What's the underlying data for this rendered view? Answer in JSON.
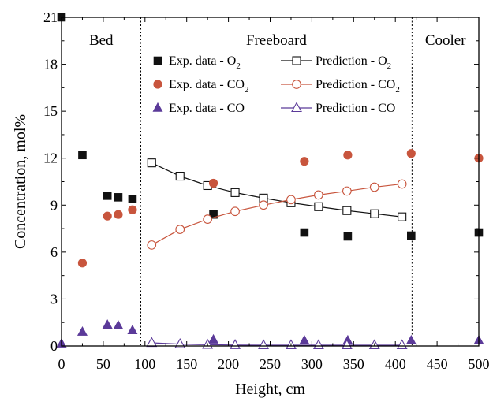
{
  "chart_data": {
    "type": "scatter",
    "xlabel": "Height, cm",
    "ylabel": "Concentration, mol%",
    "xlim": [
      0,
      500
    ],
    "ylim": [
      0,
      21
    ],
    "xticks": [
      0,
      50,
      100,
      150,
      200,
      250,
      300,
      350,
      400,
      450,
      500
    ],
    "yticks": [
      0,
      3,
      6,
      9,
      12,
      15,
      18,
      21
    ],
    "grid": false,
    "legend_position": "top-center",
    "regions": [
      {
        "label": "Bed",
        "x_start": 0,
        "x_end": 95
      },
      {
        "label": "Freeboard",
        "x_start": 95,
        "x_end": 420
      },
      {
        "label": "Cooler",
        "x_start": 420,
        "x_end": 500
      }
    ],
    "region_boundaries": [
      95,
      420
    ],
    "series": [
      {
        "name": "Exp. data - O2",
        "kind": "scatter",
        "marker": "square",
        "filled": true,
        "color": "#111111",
        "x": [
          0,
          25,
          55,
          68,
          85,
          182,
          291,
          343,
          419,
          500
        ],
        "y": [
          21.0,
          12.2,
          9.6,
          9.5,
          9.4,
          8.4,
          7.25,
          7.0,
          7.05,
          7.25
        ]
      },
      {
        "name": "Prediction - O2",
        "kind": "line",
        "marker": "square",
        "filled": false,
        "color": "#111111",
        "x": [
          108,
          142,
          175,
          208,
          242,
          275,
          308,
          342,
          375,
          408
        ],
        "y": [
          11.7,
          10.85,
          10.25,
          9.8,
          9.45,
          9.15,
          8.9,
          8.65,
          8.45,
          8.25
        ]
      },
      {
        "name": "Exp. data - CO2",
        "kind": "scatter",
        "marker": "circle",
        "filled": true,
        "color": "#c8553d",
        "x": [
          25,
          55,
          68,
          85,
          182,
          291,
          343,
          419,
          500
        ],
        "y": [
          5.3,
          8.3,
          8.4,
          8.7,
          10.4,
          11.8,
          12.2,
          12.3,
          12.0
        ]
      },
      {
        "name": "Prediction - CO2",
        "kind": "line",
        "marker": "circle",
        "filled": false,
        "color": "#c8553d",
        "x": [
          108,
          142,
          175,
          208,
          242,
          275,
          308,
          342,
          375,
          408
        ],
        "y": [
          6.45,
          7.45,
          8.1,
          8.6,
          9.0,
          9.35,
          9.65,
          9.9,
          10.15,
          10.35
        ]
      },
      {
        "name": "Exp. data - CO",
        "kind": "scatter",
        "marker": "triangle",
        "filled": true,
        "color": "#5b3a99",
        "x": [
          0,
          25,
          55,
          68,
          85,
          182,
          291,
          343,
          419,
          500
        ],
        "y": [
          0.15,
          0.9,
          1.35,
          1.3,
          1.0,
          0.4,
          0.35,
          0.35,
          0.35,
          0.35
        ]
      },
      {
        "name": "Prediction - CO",
        "kind": "line",
        "marker": "triangle",
        "filled": false,
        "color": "#5b3a99",
        "x": [
          108,
          142,
          175,
          208,
          242,
          275,
          308,
          342,
          375,
          408
        ],
        "y": [
          0.2,
          0.12,
          0.08,
          0.06,
          0.05,
          0.05,
          0.05,
          0.05,
          0.05,
          0.05
        ]
      }
    ],
    "legend": [
      {
        "exp": "Exp. data - O",
        "exp_sub": "2",
        "pred": "Prediction - O",
        "pred_sub": "2",
        "color": "#111111",
        "marker": "square"
      },
      {
        "exp": "Exp. data - CO",
        "exp_sub": "2",
        "pred": "Prediction - CO",
        "pred_sub": "2",
        "color": "#c8553d",
        "marker": "circle"
      },
      {
        "exp": "Exp. data - CO",
        "exp_sub": "",
        "pred": "Prediction - CO",
        "pred_sub": "",
        "color": "#5b3a99",
        "marker": "triangle"
      }
    ]
  }
}
